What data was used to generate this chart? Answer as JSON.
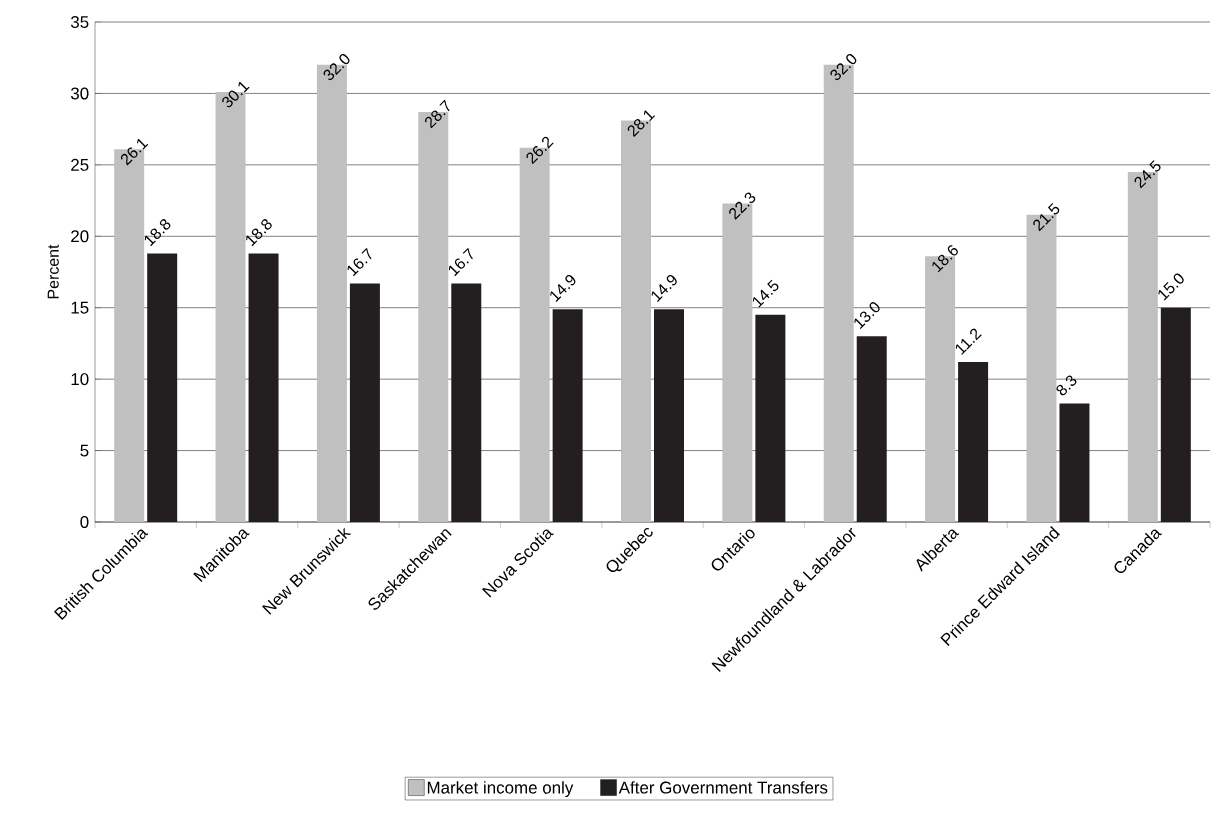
{
  "chart_data": {
    "type": "bar",
    "ylabel": "Percent",
    "categories": [
      "British Columbia",
      "Manitoba",
      "New Brunswick",
      "Saskatchewan",
      "Nova Scotia",
      "Quebec",
      "Ontario",
      "Newfoundland & Labrador",
      "Alberta",
      "Prince Edward Island",
      "Canada"
    ],
    "series": [
      {
        "name": "Market income only",
        "color": "#c0c0c0",
        "values": [
          26.1,
          30.1,
          32.0,
          28.7,
          26.2,
          28.1,
          22.3,
          32.0,
          18.6,
          21.5,
          24.5
        ],
        "value_labels": [
          "26.1",
          "30.1",
          "32.0",
          "28.7",
          "26.2",
          "28.1",
          "22.3",
          "32.0",
          "18.6",
          "21.5",
          "24.5"
        ]
      },
      {
        "name": "After Government Transfers",
        "color": "#231f20",
        "values": [
          18.8,
          18.8,
          16.7,
          16.7,
          14.9,
          14.9,
          14.5,
          13.0,
          11.2,
          8.3,
          15.0
        ],
        "value_labels": [
          "18.8",
          "18.8",
          "16.7",
          "16.7",
          "14.9",
          "14.9",
          "14.5",
          "13.0",
          "11.2",
          "8.3",
          "15.0"
        ]
      }
    ],
    "ylim": [
      0,
      35
    ],
    "yticks": [
      0,
      5,
      10,
      15,
      20,
      25,
      30,
      35
    ],
    "grid": "y",
    "legend": "bottom"
  }
}
